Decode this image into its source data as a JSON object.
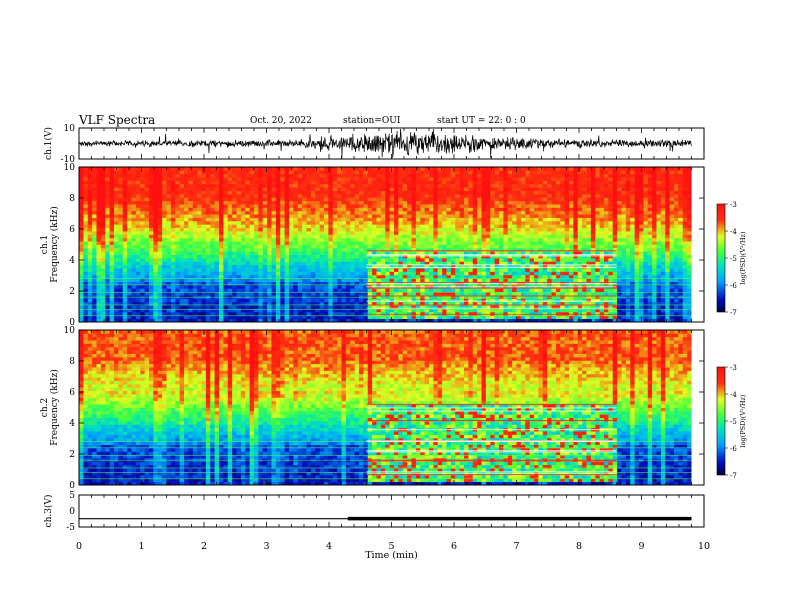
{
  "header": {
    "title": "VLF Spectra",
    "date": "Oct. 20, 2022",
    "station": "station=OUI",
    "start": "start  UT =  22: 0  : 0"
  },
  "chart_data": [
    {
      "type": "line",
      "name": "ch1-waveform",
      "ylabel": "ch.1(V)",
      "ylim": [
        -10,
        10
      ],
      "tick_labels": [
        "10",
        "-10"
      ],
      "xlim": [
        0,
        10
      ],
      "note_noise_amplitude": [
        [
          0,
          1.5
        ],
        [
          3.5,
          2
        ],
        [
          5,
          7
        ],
        [
          6.5,
          4
        ],
        [
          8,
          2
        ],
        [
          9.8,
          2
        ]
      ]
    },
    {
      "type": "heatmap",
      "name": "ch1-spectrogram",
      "ylabel_1": "ch.1",
      "ylabel_2": "Frequency  (kHz)",
      "xlim": [
        0,
        9.8
      ],
      "ylim": [
        0,
        10
      ],
      "y_ticks": [
        0,
        2,
        4,
        6,
        8,
        10
      ],
      "signal_interval_min": [
        4.6,
        8.6
      ],
      "signal_top_khz": 4.6,
      "colorbar": {
        "min": -7,
        "max": -3,
        "ticks": [
          "-3",
          "-4",
          "-5",
          "-6",
          "-7"
        ],
        "label": "log(PSD)(V²/Hz)"
      }
    },
    {
      "type": "heatmap",
      "name": "ch2-spectrogram",
      "ylabel_1": "ch.2",
      "ylabel_2": "Frequency  (kHz)",
      "xlim": [
        0,
        9.8
      ],
      "ylim": [
        0,
        10
      ],
      "y_ticks": [
        0,
        2,
        4,
        6,
        8,
        10
      ],
      "signal_interval_min": [
        4.6,
        8.6
      ],
      "signal_top_khz": 5.2,
      "colorbar": {
        "min": -7,
        "max": -3,
        "ticks": [
          "-3",
          "-4",
          "-5",
          "-6",
          "-7"
        ],
        "label": "log(PSD)(V²/Hz)"
      }
    },
    {
      "type": "line",
      "name": "ch3-level",
      "ylabel": "ch.3(V)",
      "ylim": [
        -5,
        5
      ],
      "tick_labels": [
        "5",
        "0",
        "-5"
      ],
      "x": [
        0,
        4.3,
        9.8
      ],
      "y": [
        -2.4,
        -2.4,
        -2.4
      ],
      "thick_from": 4.3
    }
  ],
  "xaxis": {
    "label": "Time  (min)",
    "ticks": [
      "0",
      "1",
      "2",
      "3",
      "4",
      "5",
      "6",
      "7",
      "8",
      "9",
      "10"
    ],
    "range": [
      0,
      10
    ]
  }
}
